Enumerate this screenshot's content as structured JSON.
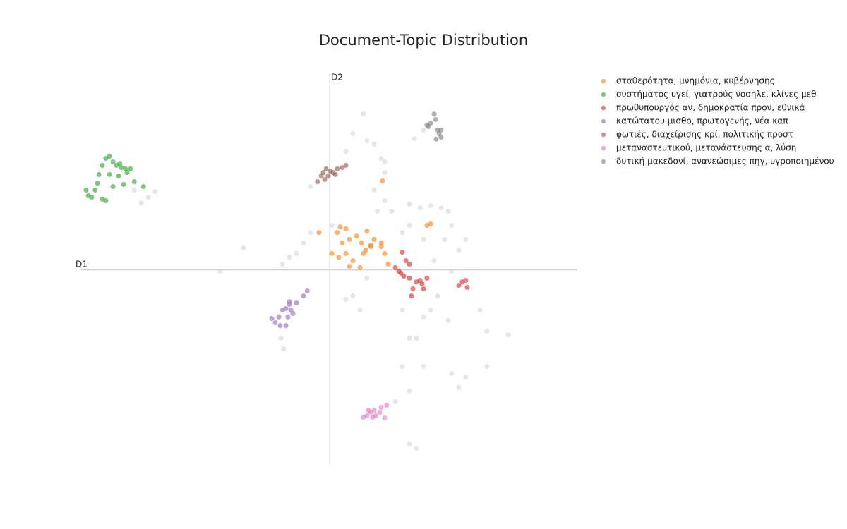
{
  "chart_data": {
    "type": "scatter",
    "title": "Document-Topic Distribution",
    "xlabel": "D1",
    "ylabel": "D2",
    "xlim": [
      -10,
      10
    ],
    "ylim": [
      -7.9,
      7.9
    ],
    "legend_position": "right",
    "series": [
      {
        "color": "#cfd8dc",
        "x": [
          1.37,
          0.94,
          0.66,
          1.51,
          1.8,
          2.09,
          2.23,
          1.8,
          2.23,
          1.94,
          3.23,
          3.66,
          4.09,
          4.51,
          4.8,
          4.94,
          5.51,
          5.23,
          4.66,
          3.8,
          3.23,
          2.94,
          4.23,
          4.94,
          4.37,
          4.8,
          6.09,
          6.37,
          7.23,
          3.8,
          4.09,
          2.94,
          3.23,
          3.8,
          2.94,
          4.94,
          5.51,
          6.37,
          5.23,
          3.23,
          2.66,
          3.51,
          3.23,
          3.51,
          0.94,
          1.23,
          0.66,
          -1.34,
          -1.63,
          -0.77,
          -1.06,
          -1.91,
          -3.49,
          -4.43,
          -7.34,
          -7.63,
          -7.06,
          -7.91,
          -1.86,
          -1.97,
          -0.77,
          3.8,
          3.43,
          1.51,
          2.51,
          0.09,
          2.23
        ],
        "values": [
          6.31,
          5.51,
          4.8,
          5.23,
          5.09,
          4.51,
          3.94,
          3.23,
          2.8,
          2.37,
          2.66,
          2.51,
          2.6,
          2.51,
          2.37,
          1.8,
          1.23,
          0.8,
          1.23,
          1.23,
          1.8,
          1.51,
          0.37,
          -0.06,
          -1.06,
          -2.06,
          -1.63,
          -2.49,
          -2.63,
          -1.91,
          -1.63,
          -1.63,
          -2.77,
          -3.91,
          -3.91,
          -4.2,
          -4.34,
          -3.91,
          -4.77,
          -4.91,
          -5.34,
          -2.77,
          -7.06,
          -7.23,
          -1.06,
          -1.63,
          -1.2,
          0.66,
          0.51,
          1.51,
          1.09,
          0.23,
          0.89,
          -0.06,
          2.94,
          2.71,
          3.17,
          3.23,
          -3.2,
          -2.77,
          3.37,
          5.66,
          5.31,
          -0.34,
          2.37,
          1.8,
          4.37
        ]
      },
      {
        "name": "σταθερότητα, μνημόνια, κυβέρνησης",
        "color": "#ff7f0e",
        "x": [
          0.43,
          0.66,
          0.31,
          0.51,
          0.8,
          1.09,
          1.29,
          1.51,
          1.66,
          1.8,
          2.09,
          2.23,
          0.66,
          0.37,
          0.09,
          0.94,
          0.8,
          1.23,
          2.37,
          2.09,
          3.94,
          4.09,
          2.14,
          -0.43,
          1.37,
          1.66,
          1.46
        ],
        "values": [
          1.74,
          1.66,
          1.51,
          1.09,
          1.23,
          1.37,
          1.09,
          1.57,
          1.0,
          1.23,
          0.94,
          0.66,
          0.66,
          0.51,
          0.66,
          0.37,
          0.14,
          0.09,
          0.23,
          1.09,
          1.8,
          1.86,
          3.6,
          1.51,
          0.66,
          0.94,
          0.8
        ]
      },
      {
        "name": "συστήματος υγεί, γιατρούς νοσηλε, κλίνες μεθ",
        "color": "#2ca02c",
        "x": [
          -9.06,
          -8.91,
          -8.77,
          -8.63,
          -8.43,
          -8.26,
          -8.2,
          -8.49,
          -9.2,
          -9.34,
          -9.4,
          -9.49,
          -9.86,
          -9.77,
          -9.63,
          -9.2,
          -9.06,
          -8.77,
          -8.34,
          -7.91,
          -7.54,
          -8.91,
          -8.54,
          -8.06
        ],
        "values": [
          4.51,
          4.6,
          4.37,
          4.23,
          4.14,
          4.09,
          3.94,
          4.31,
          4.23,
          3.86,
          3.51,
          3.23,
          3.23,
          3.0,
          2.94,
          2.86,
          2.8,
          3.37,
          3.46,
          3.57,
          3.37,
          3.86,
          3.8,
          4.09
        ]
      },
      {
        "name": "πρωθυπουργός αν, δημοκρατία προν, εθνικά",
        "color": "#d62728",
        "x": [
          2.94,
          3.09,
          3.23,
          2.8,
          3.0,
          3.23,
          3.51,
          3.74,
          3.94,
          3.37,
          3.31,
          3.8,
          2.66,
          2.89,
          3.66,
          5.23,
          5.37,
          5.51,
          5.57
        ],
        "values": [
          0.71,
          0.37,
          0.23,
          -0.06,
          -0.26,
          -0.34,
          -0.49,
          -0.57,
          -0.34,
          -0.77,
          -1.06,
          -0.77,
          0.09,
          -0.14,
          -0.43,
          -0.63,
          -0.49,
          -0.43,
          -0.71
        ]
      },
      {
        "name": "κατώτατου μισθο, πρωτογενής, νέα καπ",
        "color": "#9467bd",
        "x": [
          -0.91,
          -1.06,
          -1.34,
          -1.63,
          -1.77,
          -1.91,
          -1.57,
          -1.49,
          -1.69,
          -2.06,
          -2.34,
          -2.2,
          -2.0,
          -1.77,
          -1.63
        ],
        "values": [
          -0.86,
          -1.06,
          -1.34,
          -1.4,
          -1.57,
          -1.63,
          -1.63,
          -1.77,
          -1.91,
          -1.91,
          -1.97,
          -2.14,
          -2.26,
          -2.26,
          -1.29
        ]
      },
      {
        "name": "φωτιές, διαχείρισης κρί, πολιτικής προστ",
        "color": "#8c564b",
        "x": [
          -0.49,
          -0.34,
          -0.26,
          -0.14,
          0.03,
          0.14,
          0.31,
          0.51,
          0.66,
          -0.2,
          -0.06,
          0.23
        ],
        "values": [
          3.57,
          3.8,
          3.94,
          4.09,
          4.0,
          3.94,
          4.09,
          4.14,
          4.23,
          3.66,
          3.8,
          3.86
        ]
      },
      {
        "name": "μεταναστευτικού, μετανάστευσης α, λύση",
        "color": "#e377c2",
        "x": [
          1.37,
          1.51,
          1.66,
          1.74,
          1.86,
          2.03,
          2.09,
          2.31,
          1.57,
          2.23,
          1.8
        ],
        "values": [
          -5.97,
          -5.91,
          -5.77,
          -5.97,
          -5.91,
          -5.77,
          -5.57,
          -5.49,
          -5.69,
          -6.0,
          -5.69
        ]
      },
      {
        "name": "δυτική μακεδονί, ανανεώσιμες πηγ, υγροποιημένου",
        "color": "#7f7f7f",
        "x": [
          3.94,
          4.09,
          4.23,
          4.29,
          4.37,
          4.43,
          4.51,
          4.31,
          4.51,
          4.0
        ],
        "values": [
          5.86,
          5.94,
          6.31,
          6.09,
          5.66,
          5.51,
          5.37,
          5.29,
          5.66,
          5.8
        ]
      }
    ]
  }
}
